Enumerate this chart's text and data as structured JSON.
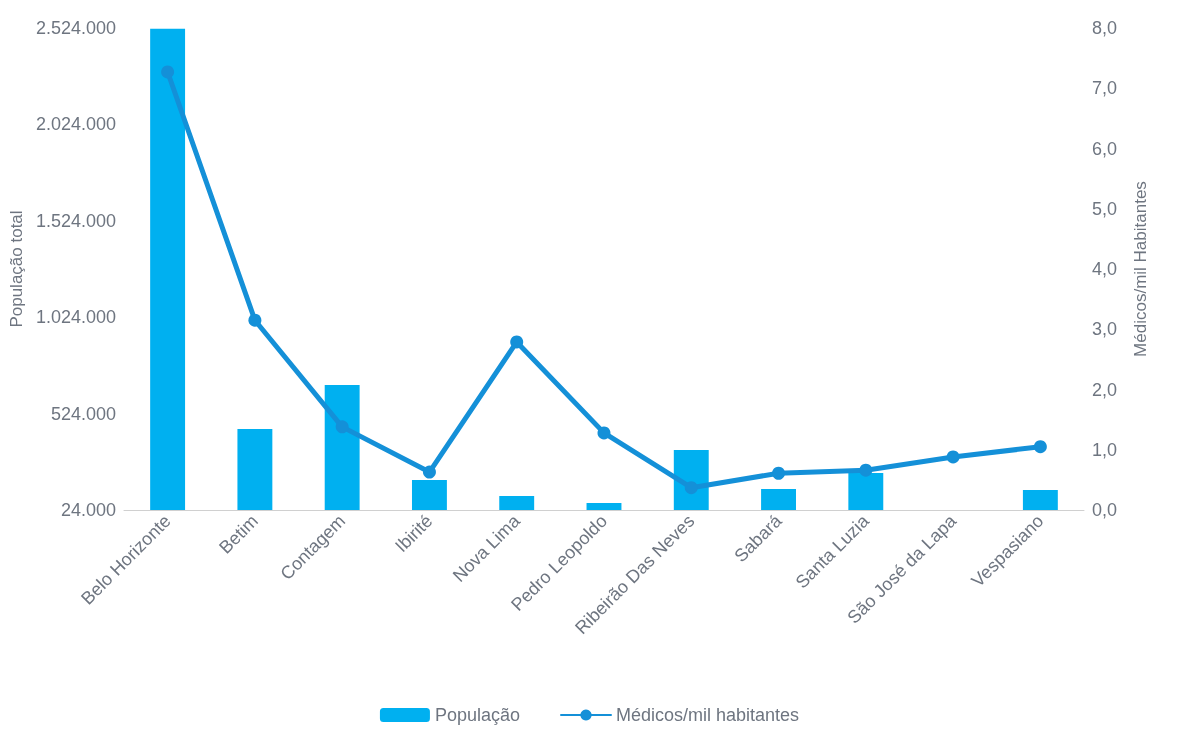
{
  "chart_data": {
    "type": "bar",
    "ylabel": "População total",
    "y2label": "Médicos/mil Habitantes",
    "categories": [
      "Belo Horizonte",
      "Betim",
      "Contagem",
      "Ibirité",
      "Nova Lima",
      "Pedro Leopoldo",
      "Ribeirão Das Neves",
      "Sabará",
      "Santa Luzia",
      "São José da Lapa",
      "Vespasiano"
    ],
    "series": [
      {
        "name": "População",
        "color": "#00b0f0",
        "values": [
          2520000,
          444000,
          672000,
          180000,
          97000,
          60000,
          335000,
          133000,
          216000,
          null,
          128000
        ]
      },
      {
        "name": "Médicos/mil habitantes",
        "type": "line",
        "axis": "y2",
        "color": "#1490d8",
        "marker": "circle",
        "values": [
          7.27,
          3.15,
          1.38,
          0.63,
          2.79,
          1.28,
          0.37,
          0.61,
          0.66,
          0.88,
          1.05
        ]
      }
    ],
    "ylim": [
      24000,
      2524000
    ],
    "yticks": [
      {
        "value": 24000,
        "label": "24.000"
      },
      {
        "value": 524000,
        "label": "524.000"
      },
      {
        "value": 1024000,
        "label": "1.024.000"
      },
      {
        "value": 1524000,
        "label": "1.524.000"
      },
      {
        "value": 2024000,
        "label": "2.024.000"
      },
      {
        "value": 2524000,
        "label": "2.524.000"
      }
    ],
    "y2lim": [
      0,
      8
    ],
    "y2ticks": [
      {
        "value": 0,
        "label": "0,0"
      },
      {
        "value": 1,
        "label": "1,0"
      },
      {
        "value": 2,
        "label": "2,0"
      },
      {
        "value": 3,
        "label": "3,0"
      },
      {
        "value": 4,
        "label": "4,0"
      },
      {
        "value": 5,
        "label": "5,0"
      },
      {
        "value": 6,
        "label": "6,0"
      },
      {
        "value": 7,
        "label": "7,0"
      },
      {
        "value": 8,
        "label": "8,0"
      }
    ],
    "grid": false,
    "legend": "bottom"
  }
}
